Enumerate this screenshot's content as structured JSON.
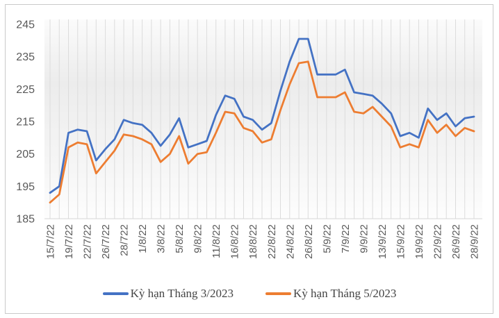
{
  "chart_data": {
    "type": "line",
    "title": "",
    "xlabel": "",
    "ylabel": "",
    "ylim": [
      185,
      245
    ],
    "y_ticks": [
      245,
      235,
      225,
      215,
      205,
      195,
      185
    ],
    "grid": "vertical-per-point",
    "legend_position": "bottom",
    "x_labels": [
      "15/7/22",
      "19/7/22",
      "22/7/22",
      "26/7/22",
      "28/722",
      "1/8/22",
      "3/8/22",
      "5/8/22",
      "9/8/22",
      "11/8/22",
      "16/8/22",
      "18/8/22",
      "22/8/22",
      "24/8/22",
      "26/8/22",
      "5/9/22",
      "7/9/22",
      "9/9/22",
      "13/9/22",
      "15/9/22",
      "19/9/22",
      "22/9/22",
      "26/9/22",
      "28/9/22"
    ],
    "label_every_n_points": 2,
    "series": [
      {
        "name": "Kỳ hạn Tháng 3/2023",
        "color": "#4472C4",
        "values": [
          193,
          195,
          211.5,
          212.5,
          212,
          203,
          206.5,
          209.5,
          215.5,
          214.5,
          214,
          211.5,
          207.5,
          211,
          216,
          207,
          208,
          209,
          217,
          223,
          222,
          216.5,
          215.5,
          212.5,
          214.5,
          224.5,
          233.5,
          240.5,
          240.5,
          229.5,
          229.5,
          229.5,
          231,
          224,
          223.5,
          223,
          220.5,
          217.5,
          210.5,
          211.5,
          210,
          219,
          215.5,
          217.5,
          213.5,
          216,
          216.5
        ]
      },
      {
        "name": "Kỳ hạn Tháng 5/2023",
        "color": "#ED7D31",
        "values": [
          190,
          192.5,
          207,
          208.5,
          208,
          199,
          202.5,
          206,
          211,
          210.5,
          209.5,
          208,
          202.5,
          205,
          210.5,
          202,
          205,
          205.5,
          211.5,
          218,
          217.5,
          213,
          212,
          208.5,
          209.5,
          218.5,
          226.5,
          233,
          233.5,
          222.5,
          222.5,
          222.5,
          224,
          218,
          217.5,
          219.5,
          216.5,
          213.5,
          207,
          208,
          207,
          215.5,
          211.5,
          214,
          210.5,
          213,
          212
        ]
      }
    ]
  },
  "style": {
    "axis_label_color": "#595959",
    "gridline_color": "#dcdcdc",
    "axisline_color": "#d6d6d6",
    "frame_border_color": "#c9c9c9"
  }
}
